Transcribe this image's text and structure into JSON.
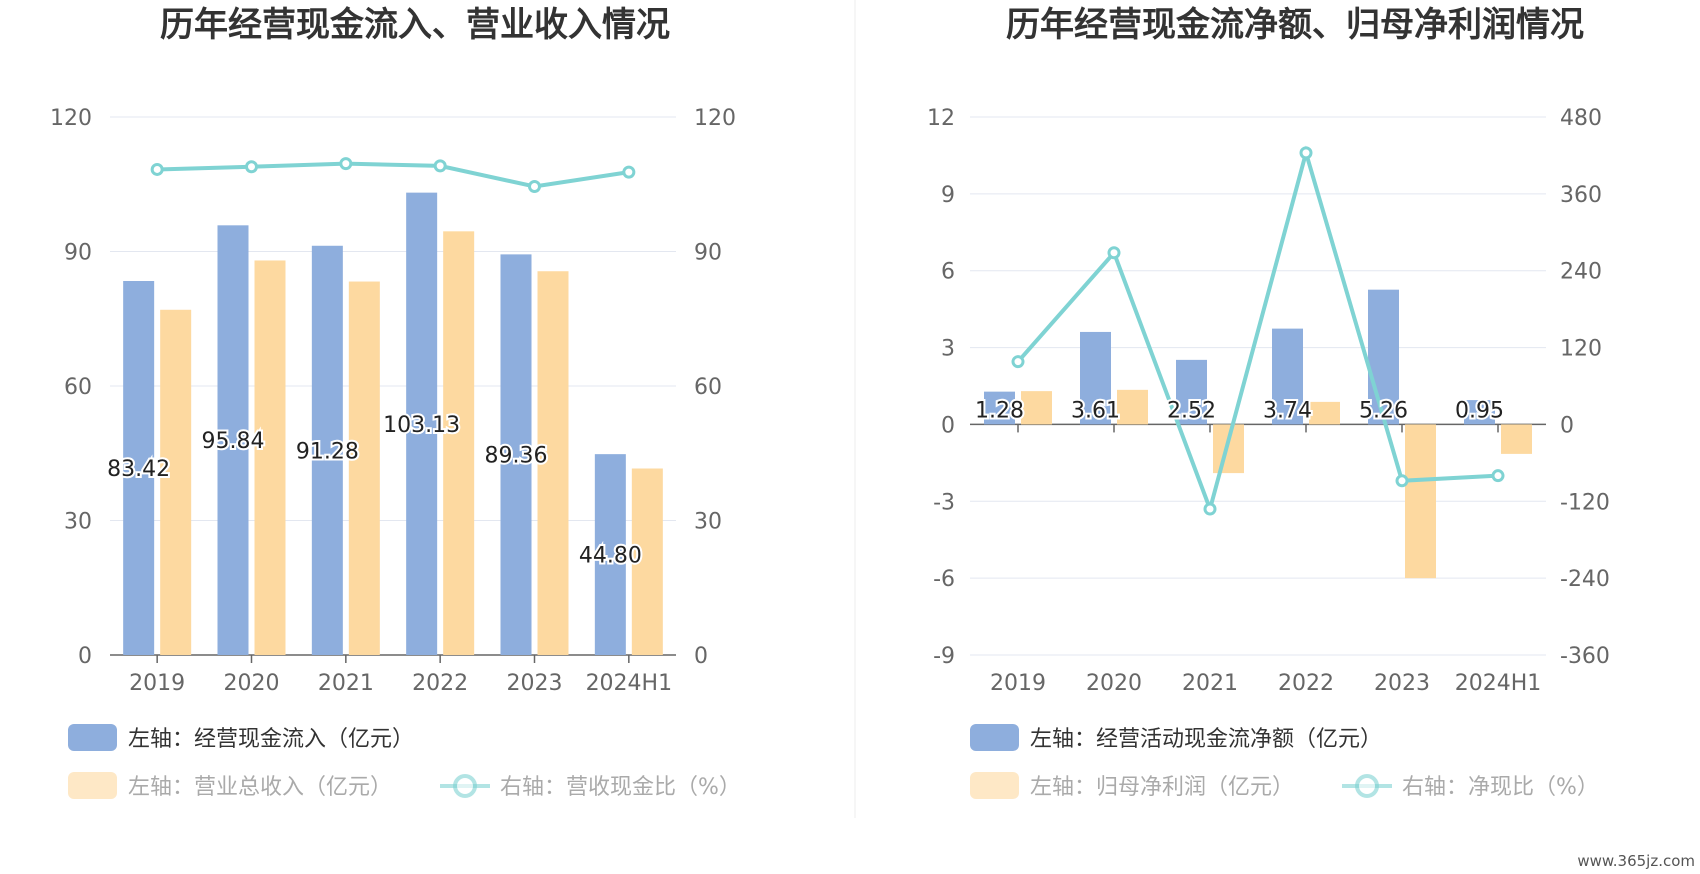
{
  "colors": {
    "bar_blue": "#8eaedd",
    "bar_orange": "#fdd9a0",
    "line_teal": "#7fd3d3",
    "grid": "#e3e7f0",
    "axis": "#666666",
    "legend_dim": "#aaaaaa",
    "legend_active": "#333333"
  },
  "watermark": "www.365jz.com",
  "chart_data": [
    {
      "type": "bar",
      "title": "历年经营现金流入、营业收入情况",
      "categories": [
        "2019",
        "2020",
        "2021",
        "2022",
        "2023",
        "2024H1"
      ],
      "left_axis": {
        "ticks": [
          "0",
          "30",
          "60",
          "90",
          "120"
        ],
        "range": [
          0,
          120
        ]
      },
      "right_axis": {
        "ticks": [
          "0",
          "30",
          "60",
          "90",
          "120"
        ],
        "range": [
          0,
          120
        ]
      },
      "grid": true,
      "legend_position": "bottom",
      "series": [
        {
          "name": "左轴：经营现金流入（亿元）",
          "axis": "left",
          "kind": "bar",
          "color": "#8eaedd",
          "values": [
            83.42,
            95.84,
            91.28,
            103.13,
            89.36,
            44.8
          ],
          "labels": [
            "83.42",
            "95.84",
            "91.28",
            "103.13",
            "89.36",
            "44.80"
          ]
        },
        {
          "name": "左轴：营业总收入（亿元）",
          "axis": "left",
          "kind": "bar",
          "color": "#fdd9a0",
          "values": [
            77.0,
            88.0,
            83.3,
            94.5,
            85.6,
            41.6
          ]
        },
        {
          "name": "右轴：营收现金比（%）",
          "axis": "right",
          "kind": "line",
          "color": "#7fd3d3",
          "values": [
            108.3,
            108.9,
            109.6,
            109.1,
            104.5,
            107.7
          ]
        }
      ]
    },
    {
      "type": "bar",
      "title": "历年经营现金流净额、归母净利润情况",
      "categories": [
        "2019",
        "2020",
        "2021",
        "2022",
        "2023",
        "2024H1"
      ],
      "left_axis": {
        "ticks": [
          "-9",
          "-6",
          "-3",
          "0",
          "3",
          "6",
          "9",
          "12"
        ],
        "range": [
          -9,
          12
        ]
      },
      "right_axis": {
        "ticks": [
          "-360",
          "-240",
          "-120",
          "0",
          "120",
          "240",
          "360",
          "480"
        ],
        "range": [
          -360,
          480
        ]
      },
      "grid": true,
      "legend_position": "bottom",
      "series": [
        {
          "name": "左轴：经营活动现金流净额（亿元）",
          "axis": "left",
          "kind": "bar",
          "color": "#8eaedd",
          "values": [
            1.28,
            3.61,
            2.52,
            3.74,
            5.26,
            0.95
          ],
          "labels": [
            "1.28",
            "3.61",
            "2.52",
            "3.74",
            "5.26",
            "0.95"
          ]
        },
        {
          "name": "左轴：归母净利润（亿元）",
          "axis": "left",
          "kind": "bar",
          "color": "#fdd9a0",
          "values": [
            1.3,
            1.35,
            -1.9,
            0.88,
            -6.0,
            -1.15
          ]
        },
        {
          "name": "右轴：净现比（%）",
          "axis": "right",
          "kind": "line",
          "color": "#7fd3d3",
          "values": [
            98,
            268,
            -132,
            424,
            -88,
            -80
          ]
        }
      ]
    }
  ]
}
